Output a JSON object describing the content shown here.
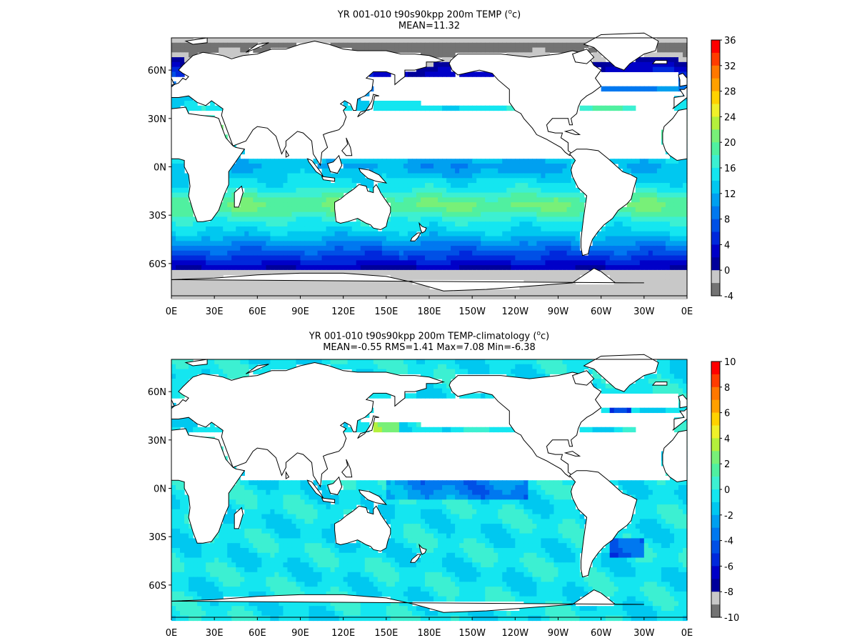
{
  "panels": [
    {
      "title_pre": "YR 001-010 t90s90kpp 200m TEMP (",
      "title_sup": "o",
      "title_post": "c)",
      "subtitle": "MEAN=11.32",
      "colorbar": {
        "ticks": [
          "36",
          "32",
          "28",
          "24",
          "20",
          "16",
          "12",
          "8",
          "4",
          "0",
          "-4"
        ],
        "colors": [
          "#ff0000",
          "#ff3c00",
          "#ff7800",
          "#ffa000",
          "#ffd200",
          "#f0f02a",
          "#b4f03c",
          "#78f078",
          "#50f0a0",
          "#3cf0d2",
          "#14e6f0",
          "#00c8f0",
          "#00a0f0",
          "#0078f0",
          "#0050e6",
          "#0028dc",
          "#0000c8",
          "#00009b",
          "#c8c8c8",
          "#737373"
        ]
      },
      "field": {
        "metric": "temperature_c"
      }
    },
    {
      "title_pre": "YR 001-010 t90s90kpp 200m TEMP-climatology (",
      "title_sup": "o",
      "title_post": "c)",
      "subtitle": "MEAN=-0.55   RMS=1.41   Max=7.08   Min=-6.38",
      "colorbar": {
        "ticks": [
          "10",
          "8",
          "6",
          "4",
          "2",
          "0",
          "-2",
          "-4",
          "-6",
          "-8",
          "-10"
        ],
        "colors": [
          "#ff0000",
          "#ff3c00",
          "#ff7800",
          "#ffa000",
          "#ffd200",
          "#f0f02a",
          "#b4f03c",
          "#78f078",
          "#50f0a0",
          "#3cf0d2",
          "#14e6f0",
          "#00c8f0",
          "#00a0f0",
          "#0078f0",
          "#0050e6",
          "#0028dc",
          "#0000c8",
          "#00009b",
          "#c8c8c8",
          "#737373"
        ]
      },
      "field": {
        "metric": "temperature_anomaly_c"
      }
    }
  ],
  "axes": {
    "lon_ticks": [
      "0E",
      "30E",
      "60E",
      "90E",
      "120E",
      "150E",
      "180E",
      "150W",
      "120W",
      "90W",
      "60W",
      "30W",
      "0E"
    ],
    "lat_ticks": [
      "60N",
      "30N",
      "0N",
      "30S",
      "60S"
    ]
  }
}
